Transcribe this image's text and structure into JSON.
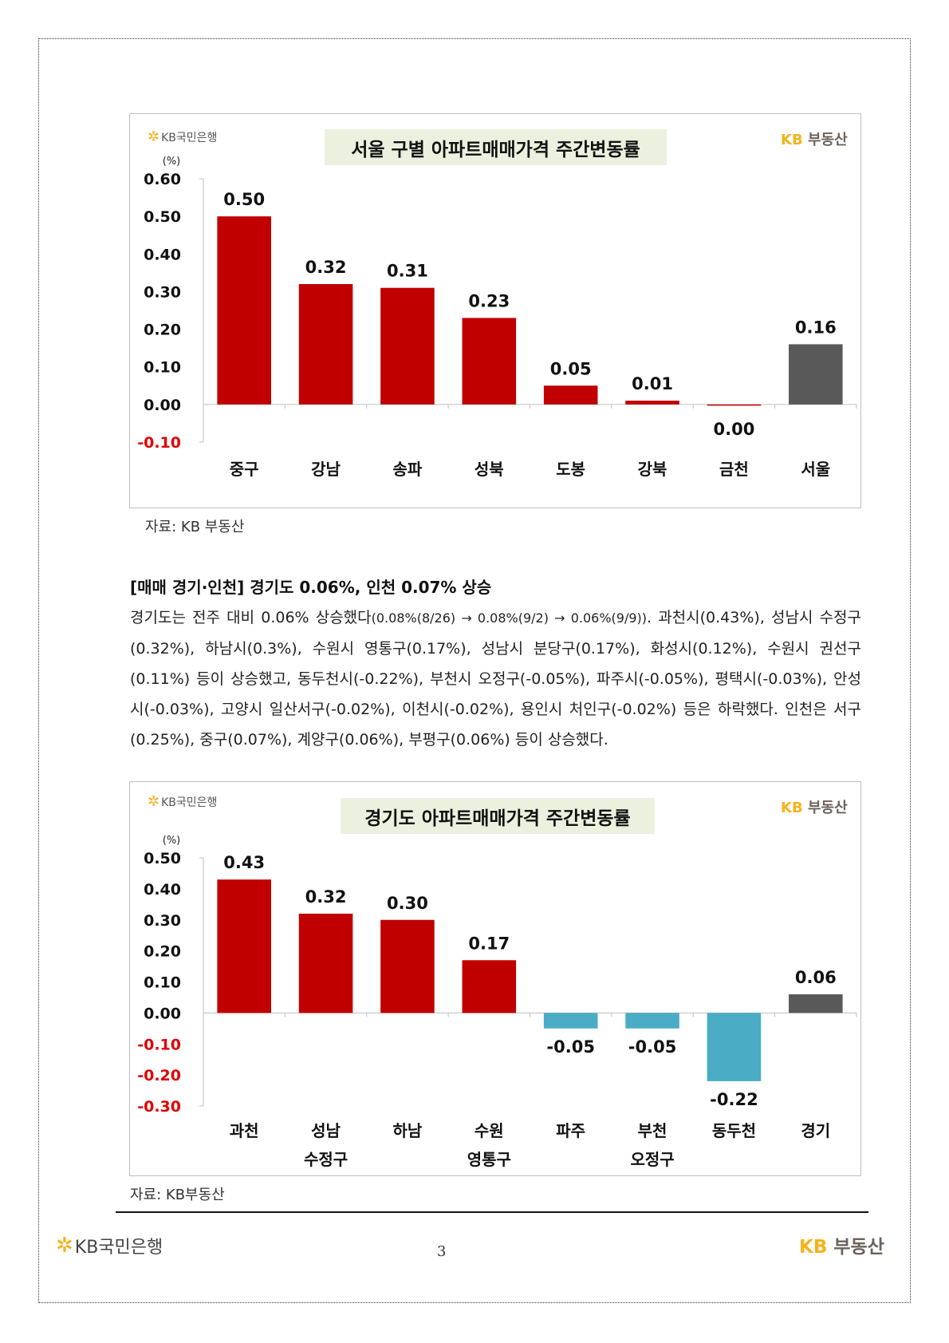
{
  "chart1": {
    "logo_left": "KB국민은행",
    "logo_right_kb": "KB",
    "logo_right_text": "부동산",
    "title": "서울 구별 아파트매매가격 주간변동률",
    "unit": "(%)",
    "source": "자료: KB 부동산"
  },
  "chart2": {
    "logo_left": "KB국민은행",
    "logo_right_kb": "KB",
    "logo_right_text": "부동산",
    "title": "경기도 아파트매매가격 주간변동률",
    "unit": "(%)",
    "source": "자료: KB부동산"
  },
  "article": {
    "heading": "[매매 경기·인천] 경기도 0.06%, 인천 0.07% 상승",
    "body_prefix": "경기도는 전주 대비 0.06% 상승했다",
    "body_small": "(0.08%(8/26) → 0.08%(9/2) → 0.06%(9/9))",
    "body_rest": ". 과천시(0.43%), 성남시 수정구(0.32%), 하남시(0.3%), 수원시 영통구(0.17%), 성남시 분당구(0.17%), 화성시(0.12%), 수원시 권선구(0.11%) 등이 상승했고, 동두천시(-0.22%), 부천시 오정구(-0.05%), 파주시(-0.05%), 평택시(-0.03%), 안성시(-0.03%), 고양시 일산서구(-0.02%), 이천시(-0.02%), 용인시 처인구(-0.02%) 등은 하락했다. 인천은 서구(0.25%), 중구(0.07%), 계양구(0.06%), 부평구(0.06%) 등이 상승했다."
  },
  "footer": {
    "logo_left": "KB국민은행",
    "logo_right_kb": "KB",
    "logo_right_text": "부동산",
    "page_number": "3"
  },
  "colors": {
    "up": "#c00000",
    "down": "#4bacc6",
    "total": "#595959",
    "negative_tick": "#e00000"
  },
  "chart_data": [
    {
      "type": "bar",
      "title": "서울 구별 아파트매매가격 주간변동률",
      "ylabel": "(%)",
      "ylim": [
        -0.1,
        0.6
      ],
      "yticks": [
        "0.60",
        "0.50",
        "0.40",
        "0.30",
        "0.20",
        "0.10",
        "0.00",
        "-0.10"
      ],
      "categories": [
        [
          "중구"
        ],
        [
          "강남"
        ],
        [
          "송파"
        ],
        [
          "성북"
        ],
        [
          "도봉"
        ],
        [
          "강북"
        ],
        [
          "금천"
        ],
        [
          "서울"
        ]
      ],
      "values": [
        0.5,
        0.32,
        0.31,
        0.23,
        0.05,
        0.01,
        0.0,
        0.16
      ],
      "labels": [
        "0.50",
        "0.32",
        "0.31",
        "0.23",
        "0.05",
        "0.01",
        "0.00",
        "0.16"
      ],
      "kinds": [
        "up",
        "up",
        "up",
        "up",
        "up",
        "up",
        "up",
        "total"
      ]
    },
    {
      "type": "bar",
      "title": "경기도 아파트매매가격 주간변동률",
      "ylabel": "(%)",
      "ylim": [
        -0.3,
        0.5
      ],
      "yticks": [
        "0.50",
        "0.40",
        "0.30",
        "0.20",
        "0.10",
        "0.00",
        "-0.10",
        "-0.20",
        "-0.30"
      ],
      "categories": [
        [
          "과천"
        ],
        [
          "성남",
          "수정구"
        ],
        [
          "하남"
        ],
        [
          "수원",
          "영통구"
        ],
        [
          "파주"
        ],
        [
          "부천",
          "오정구"
        ],
        [
          "동두천"
        ],
        [
          "경기"
        ]
      ],
      "values": [
        0.43,
        0.32,
        0.3,
        0.17,
        -0.05,
        -0.05,
        -0.22,
        0.06
      ],
      "labels": [
        "0.43",
        "0.32",
        "0.30",
        "0.17",
        "-0.05",
        "-0.05",
        "-0.22",
        "0.06"
      ],
      "kinds": [
        "up",
        "up",
        "up",
        "up",
        "down",
        "down",
        "down",
        "total"
      ]
    }
  ]
}
